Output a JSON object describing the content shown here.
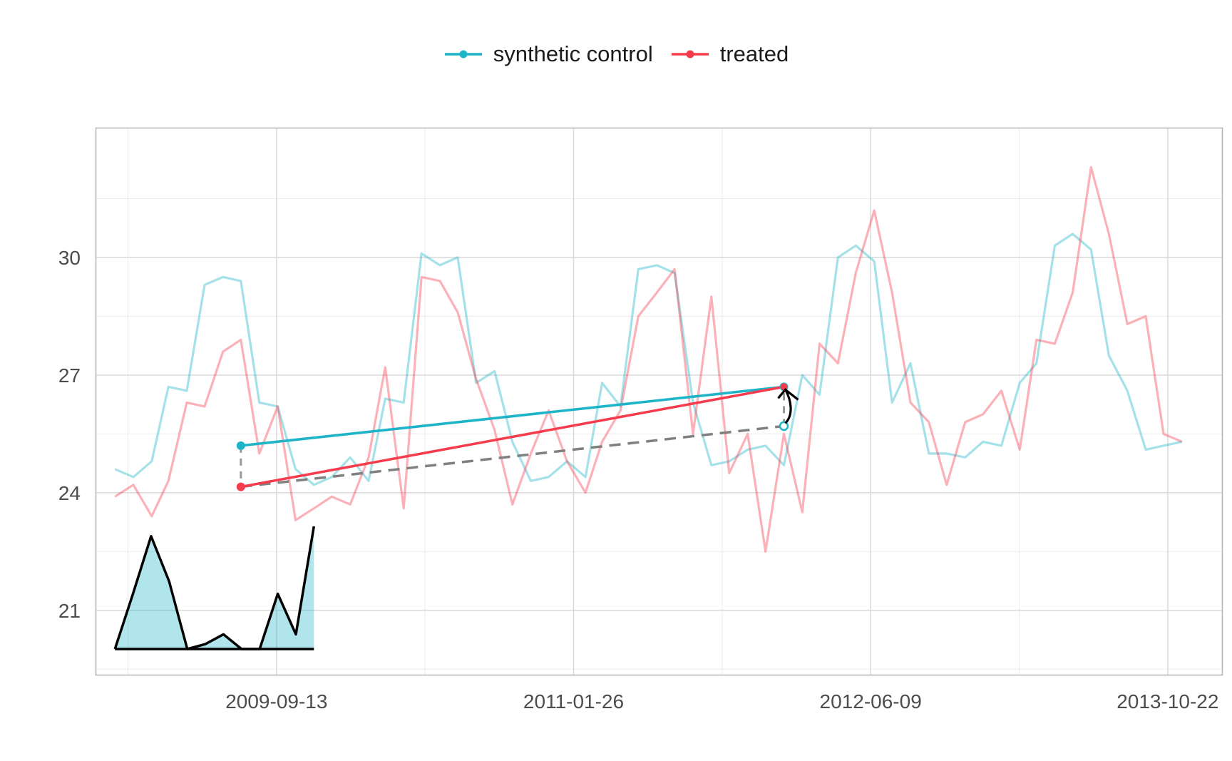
{
  "chart_data": {
    "type": "line",
    "title": "",
    "xlabel": "",
    "ylabel": "",
    "x_ticks": [
      "2009-09-13",
      "2011-01-26",
      "2012-06-09",
      "2013-10-22"
    ],
    "y_ticks": [
      21,
      24,
      27,
      30
    ],
    "xlim": [
      "2008-11-13",
      "2014-01-22"
    ],
    "ylim": [
      19.35,
      33.3
    ],
    "grid": true,
    "legend_position": "top",
    "x": [
      "2008-12-15",
      "2009-01-15",
      "2009-02-15",
      "2009-03-15",
      "2009-04-15",
      "2009-05-15",
      "2009-06-15",
      "2009-07-15",
      "2009-08-15",
      "2009-09-15",
      "2009-10-15",
      "2009-11-15",
      "2009-12-15",
      "2010-01-15",
      "2010-02-15",
      "2010-03-15",
      "2010-04-15",
      "2010-05-15",
      "2010-06-15",
      "2010-07-15",
      "2010-08-15",
      "2010-09-15",
      "2010-10-15",
      "2010-11-15",
      "2010-12-15",
      "2011-01-15",
      "2011-02-15",
      "2011-03-15",
      "2011-04-15",
      "2011-05-15",
      "2011-06-15",
      "2011-07-15",
      "2011-08-15",
      "2011-09-15",
      "2011-10-15",
      "2011-11-15",
      "2011-12-15",
      "2012-01-15",
      "2012-02-15",
      "2012-03-15",
      "2012-04-15",
      "2012-05-15",
      "2012-06-15",
      "2012-07-15",
      "2012-08-15",
      "2012-09-15",
      "2012-10-15",
      "2012-11-15",
      "2012-12-15",
      "2013-01-15",
      "2013-02-15",
      "2013-03-15",
      "2013-04-15",
      "2013-05-15",
      "2013-06-15",
      "2013-07-15",
      "2013-08-15",
      "2013-09-15",
      "2013-10-15",
      "2013-11-15"
    ],
    "series": [
      {
        "name": "synthetic control",
        "color": "#1eb4c8",
        "values": [
          24.6,
          24.4,
          24.8,
          26.7,
          26.6,
          29.3,
          29.5,
          29.4,
          26.3,
          26.2,
          24.6,
          24.2,
          24.4,
          24.9,
          24.3,
          26.4,
          26.3,
          30.1,
          29.8,
          30.0,
          26.8,
          27.1,
          25.3,
          24.3,
          24.4,
          24.8,
          24.4,
          26.8,
          26.2,
          29.7,
          29.8,
          29.6,
          26.3,
          24.7,
          24.8,
          25.1,
          25.2,
          24.7,
          27.0,
          26.5,
          30.0,
          30.3,
          29.9,
          26.3,
          27.3,
          25.0,
          25.0,
          24.9,
          25.3,
          25.2,
          26.8,
          27.3,
          30.3,
          30.6,
          30.2,
          27.5,
          26.6,
          25.1,
          25.2,
          25.3
        ]
      },
      {
        "name": "treated",
        "color": "#f53b4c",
        "values": [
          23.9,
          24.2,
          23.4,
          24.3,
          26.3,
          26.2,
          27.6,
          27.9,
          25.0,
          26.2,
          23.3,
          23.6,
          23.9,
          23.7,
          24.9,
          27.2,
          23.6,
          29.5,
          29.4,
          28.6,
          26.9,
          25.6,
          23.7,
          25.0,
          26.1,
          24.8,
          24.0,
          25.3,
          26.1,
          28.5,
          29.1,
          29.7,
          25.5,
          29.0,
          24.5,
          25.5,
          22.5,
          25.5,
          23.5,
          27.8,
          27.3,
          29.6,
          31.2,
          29.1,
          26.3,
          25.8,
          24.2,
          25.8,
          26.0,
          26.6,
          25.1,
          27.9,
          27.8,
          29.1,
          32.3,
          30.6,
          28.3,
          28.5,
          25.5,
          25.3
        ]
      }
    ],
    "overlay_points": {
      "start_date": "2009-07-15",
      "end_date": "2012-01-15",
      "synthetic_start": 25.2,
      "synthetic_end": 26.7,
      "treated_start": 24.15,
      "treated_end": 26.7,
      "counterfactual_end": 25.7
    },
    "inset": {
      "start_date": "2008-12-15",
      "end_date": "2009-11-15",
      "values": [
        0.0,
        0.45,
        0.92,
        0.55,
        0.0,
        0.04,
        0.12,
        0.0,
        0.0,
        0.45,
        0.12,
        1.0
      ]
    }
  },
  "legend": {
    "items": [
      {
        "label": "synthetic control",
        "color": "#1eb4c8"
      },
      {
        "label": "treated",
        "color": "#f53b4c"
      }
    ]
  }
}
